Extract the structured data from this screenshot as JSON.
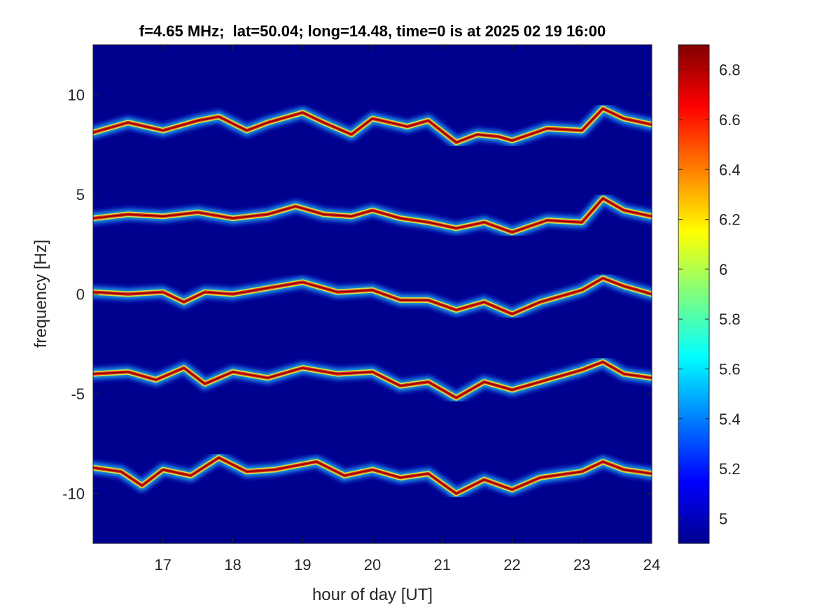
{
  "chart_data": {
    "type": "heatmap",
    "title": "f=4.65 MHz;  lat=50.04; long=14.48, time=0 is at 2025 02 19 16:00",
    "xlabel": "hour of day [UT]",
    "ylabel": "frequency [Hz]",
    "xlim": [
      16.0,
      24.0
    ],
    "ylim": [
      -12.5,
      12.5
    ],
    "xticks": [
      17,
      18,
      19,
      20,
      21,
      22,
      23,
      24
    ],
    "xtick_labels": [
      "17",
      "18",
      "19",
      "20",
      "21",
      "22",
      "23",
      "24"
    ],
    "yticks": [
      10,
      5,
      0,
      -5,
      -10
    ],
    "ytick_labels": [
      "10",
      "5",
      "0",
      "-5",
      "-10"
    ],
    "colorbar": {
      "colormap": "jet",
      "clim": [
        4.9,
        6.9
      ],
      "ticks": [
        6.8,
        6.6,
        6.4,
        6.2,
        6.0,
        5.8,
        5.6,
        5.4,
        5.2,
        5.0
      ],
      "tick_labels": [
        "6.8",
        "6.6",
        "6.4",
        "6.2",
        "6",
        "5.8",
        "5.6",
        "5.4",
        "5.2",
        "5"
      ]
    },
    "background_color": "#00008f",
    "traces": [
      {
        "center_frequency": 8.4,
        "points": [
          [
            16.0,
            8.1
          ],
          [
            16.5,
            8.6
          ],
          [
            17.0,
            8.2
          ],
          [
            17.5,
            8.7
          ],
          [
            17.8,
            8.9
          ],
          [
            18.2,
            8.2
          ],
          [
            18.5,
            8.6
          ],
          [
            19.0,
            9.1
          ],
          [
            19.3,
            8.6
          ],
          [
            19.7,
            8.0
          ],
          [
            20.0,
            8.8
          ],
          [
            20.5,
            8.4
          ],
          [
            20.8,
            8.7
          ],
          [
            21.2,
            7.6
          ],
          [
            21.5,
            8.0
          ],
          [
            21.8,
            7.9
          ],
          [
            22.0,
            7.7
          ],
          [
            22.5,
            8.3
          ],
          [
            23.0,
            8.2
          ],
          [
            23.3,
            9.3
          ],
          [
            23.6,
            8.8
          ],
          [
            24.0,
            8.5
          ]
        ]
      },
      {
        "center_frequency": 4.0,
        "points": [
          [
            16.0,
            3.8
          ],
          [
            16.5,
            4.0
          ],
          [
            17.0,
            3.9
          ],
          [
            17.5,
            4.1
          ],
          [
            18.0,
            3.8
          ],
          [
            18.5,
            4.0
          ],
          [
            18.9,
            4.4
          ],
          [
            19.3,
            4.0
          ],
          [
            19.7,
            3.9
          ],
          [
            20.0,
            4.2
          ],
          [
            20.4,
            3.8
          ],
          [
            20.8,
            3.6
          ],
          [
            21.2,
            3.3
          ],
          [
            21.6,
            3.6
          ],
          [
            22.0,
            3.1
          ],
          [
            22.5,
            3.7
          ],
          [
            23.0,
            3.6
          ],
          [
            23.3,
            4.8
          ],
          [
            23.6,
            4.2
          ],
          [
            24.0,
            3.9
          ]
        ]
      },
      {
        "center_frequency": 0.0,
        "points": [
          [
            16.0,
            0.1
          ],
          [
            16.5,
            0.0
          ],
          [
            17.0,
            0.1
          ],
          [
            17.3,
            -0.4
          ],
          [
            17.6,
            0.1
          ],
          [
            18.0,
            0.0
          ],
          [
            18.5,
            0.3
          ],
          [
            19.0,
            0.6
          ],
          [
            19.5,
            0.1
          ],
          [
            20.0,
            0.2
          ],
          [
            20.4,
            -0.3
          ],
          [
            20.8,
            -0.3
          ],
          [
            21.2,
            -0.8
          ],
          [
            21.6,
            -0.4
          ],
          [
            22.0,
            -1.0
          ],
          [
            22.4,
            -0.4
          ],
          [
            23.0,
            0.2
          ],
          [
            23.3,
            0.8
          ],
          [
            23.6,
            0.4
          ],
          [
            24.0,
            0.0
          ]
        ]
      },
      {
        "center_frequency": -4.0,
        "points": [
          [
            16.0,
            -4.0
          ],
          [
            16.5,
            -3.9
          ],
          [
            16.9,
            -4.3
          ],
          [
            17.3,
            -3.7
          ],
          [
            17.6,
            -4.5
          ],
          [
            18.0,
            -3.9
          ],
          [
            18.5,
            -4.2
          ],
          [
            19.0,
            -3.7
          ],
          [
            19.5,
            -4.0
          ],
          [
            20.0,
            -3.9
          ],
          [
            20.4,
            -4.6
          ],
          [
            20.8,
            -4.4
          ],
          [
            21.2,
            -5.2
          ],
          [
            21.6,
            -4.4
          ],
          [
            22.0,
            -4.8
          ],
          [
            22.4,
            -4.4
          ],
          [
            23.0,
            -3.8
          ],
          [
            23.3,
            -3.4
          ],
          [
            23.6,
            -4.0
          ],
          [
            24.0,
            -4.2
          ]
        ]
      },
      {
        "center_frequency": -8.8,
        "points": [
          [
            16.0,
            -8.7
          ],
          [
            16.4,
            -8.9
          ],
          [
            16.7,
            -9.6
          ],
          [
            17.0,
            -8.8
          ],
          [
            17.4,
            -9.1
          ],
          [
            17.8,
            -8.2
          ],
          [
            18.2,
            -8.9
          ],
          [
            18.6,
            -8.8
          ],
          [
            19.2,
            -8.4
          ],
          [
            19.6,
            -9.1
          ],
          [
            20.0,
            -8.8
          ],
          [
            20.4,
            -9.2
          ],
          [
            20.8,
            -9.0
          ],
          [
            21.2,
            -10.0
          ],
          [
            21.6,
            -9.3
          ],
          [
            22.0,
            -9.8
          ],
          [
            22.4,
            -9.2
          ],
          [
            23.0,
            -8.9
          ],
          [
            23.3,
            -8.4
          ],
          [
            23.6,
            -8.8
          ],
          [
            24.0,
            -9.0
          ]
        ]
      }
    ]
  }
}
